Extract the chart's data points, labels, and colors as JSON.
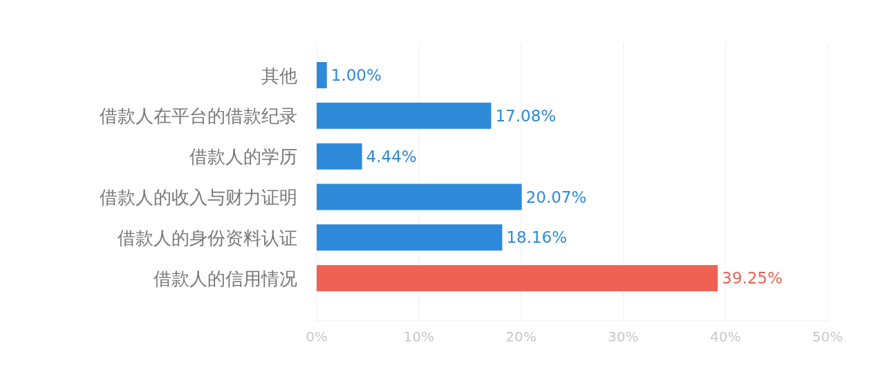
{
  "chart_data": {
    "type": "bar",
    "orientation": "horizontal",
    "categories": [
      "其他",
      "借款人在平台的借款纪录",
      "借款人的学历",
      "借款人的收入与财力证明",
      "借款人的身份资料认证",
      "借款人的信用情况"
    ],
    "values": [
      1.0,
      17.08,
      4.44,
      20.07,
      18.16,
      39.25
    ],
    "colors": [
      "#2e8ad8",
      "#2e8ad8",
      "#2e8ad8",
      "#2e8ad8",
      "#2e8ad8",
      "#ef6253"
    ],
    "value_labels": [
      "1.00%",
      "17.08%",
      "4.44%",
      "20.07%",
      "18.16%",
      "39.25%"
    ],
    "xlim": [
      0,
      50
    ],
    "xticks": [
      {
        "value": 0,
        "label": "0%"
      },
      {
        "value": 10,
        "label": "10%"
      },
      {
        "value": 20,
        "label": "20%"
      },
      {
        "value": 30,
        "label": "30%"
      },
      {
        "value": 40,
        "label": "40%"
      },
      {
        "value": 50,
        "label": "50%"
      }
    ],
    "grid": "x"
  }
}
